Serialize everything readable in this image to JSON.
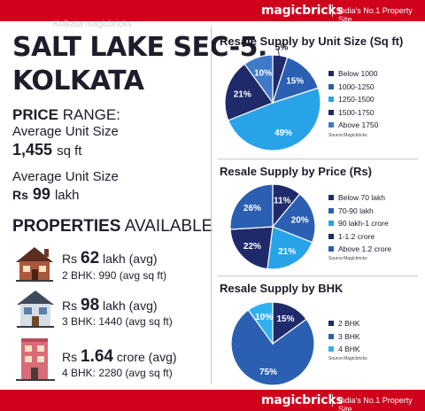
{
  "brand": {
    "name": "magicbricks",
    "tagline": "India's No.1 Property Site"
  },
  "header_ghost": "Kolkata magicbricks",
  "title": {
    "line1": "SALT LAKE SEC-5,",
    "line2": "KOLKATA"
  },
  "price_range": {
    "bold": "PRICE",
    "rest": "RANGE:"
  },
  "avg_unit_size": {
    "label": "Average Unit Size",
    "value": "1,455",
    "unit": "sq ft"
  },
  "avg_unit_price": {
    "label": "Average Unit Size",
    "currency": "Rs",
    "value": "99",
    "unit": "lakh"
  },
  "properties_heading": {
    "bold": "PROPERTIES",
    "rest": "AVAILABLE"
  },
  "properties": [
    {
      "currency": "Rs",
      "price": "62",
      "unit": "lakh (avg)",
      "detail": "2 BHK: 990 (avg sq ft)",
      "icon": "house-icon-brown"
    },
    {
      "currency": "Rs",
      "price": "98",
      "unit": "lakh (avg)",
      "detail": "3 BHK: 1440 (avg sq ft)",
      "icon": "house-icon-blue"
    },
    {
      "currency": "Rs",
      "price": "1.64",
      "unit": "crore (avg)",
      "detail": "4 BHK: 2280 (avg sq ft)",
      "icon": "building-icon-pink"
    }
  ],
  "colors": {
    "brand_red": "#d0021b",
    "navy": "#1f2a6b",
    "mid_blue": "#2b5fb2",
    "light_blue": "#29a3e8",
    "slate": "#34509c",
    "cornflower": "#3f7ac9",
    "pale_blue": "#2fb0ef"
  },
  "chart_data": [
    {
      "type": "pie",
      "title": "Resale Supply by Unit Size (Sq ft)",
      "categories": [
        "Below 1000",
        "1000-1250",
        "1250-1500",
        "1500-1750",
        "Above 1750"
      ],
      "values": [
        5,
        15,
        49,
        21,
        10
      ],
      "labels": [
        "5%",
        "15%",
        "49%",
        "21%",
        "10%"
      ],
      "colors": [
        "#1f2a6b",
        "#2b5fb2",
        "#29a3e8",
        "#1f2a6b",
        "#3f7ac9"
      ],
      "legend_colors": [
        "#1f2a6b",
        "#2b5fb2",
        "#29a3e8",
        "#1f2a6b",
        "#3f7ac9"
      ],
      "source": "Source:Magicbricks",
      "legend": "right"
    },
    {
      "type": "pie",
      "title": "Resale Supply by Price (Rs)",
      "categories": [
        "Below 70 lakh",
        "70-90 lakh",
        "90 lakh-1 crore",
        "1-1.2 crore",
        "Above 1.2 crore"
      ],
      "values": [
        11,
        20,
        21,
        22,
        26
      ],
      "labels": [
        "11%",
        "20%",
        "21%",
        "22%",
        "26%"
      ],
      "colors": [
        "#1f2a6b",
        "#2b5fb2",
        "#29a3e8",
        "#1f2a6b",
        "#2b5fb2"
      ],
      "legend_colors": [
        "#1f2a6b",
        "#2b5fb2",
        "#29a3e8",
        "#1f2a6b",
        "#2b5fb2"
      ],
      "source": "Source:Magicbricks",
      "legend": "right"
    },
    {
      "type": "pie",
      "title": "Resale Supply by BHK",
      "categories": [
        "2 BHK",
        "3 BHK",
        "4 BHK"
      ],
      "values": [
        15,
        75,
        10
      ],
      "labels": [
        "15%",
        "75%",
        "10%"
      ],
      "colors": [
        "#1f2a6b",
        "#2b5fb2",
        "#2fb0ef"
      ],
      "legend_colors": [
        "#1f2a6b",
        "#2b5fb2",
        "#2fb0ef"
      ],
      "source": "Source:Magicbricks",
      "legend": "right"
    }
  ]
}
